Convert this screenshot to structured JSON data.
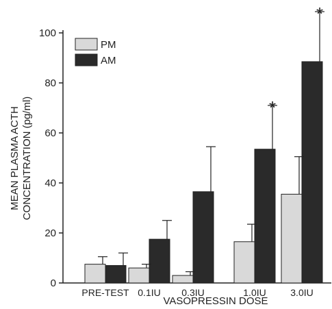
{
  "chart_data": {
    "type": "bar",
    "title": "",
    "xlabel": "VASOPRESSIN DOSE",
    "ylabel_lines": [
      "MEAN PLASMA ACTH",
      "CONCENTRATION (pg/ml)"
    ],
    "ylim": [
      0,
      100
    ],
    "yticks": [
      0,
      20,
      40,
      60,
      80,
      100
    ],
    "grid": false,
    "legend_position": "top-left",
    "categories": [
      "PRE-TEST",
      "0.1IU",
      "0.3IU",
      "1.0IU",
      "3.0IU"
    ],
    "series": [
      {
        "name": "PM",
        "fill": "#d9d9d9",
        "values": [
          7.5,
          6,
          3,
          16.5,
          35.5
        ],
        "error": [
          3,
          1.5,
          1.5,
          7,
          15
        ]
      },
      {
        "name": "AM",
        "fill": "#2a2a2a",
        "values": [
          7,
          17.5,
          36.5,
          53.5,
          88.5
        ],
        "error": [
          5,
          7.5,
          18,
          17.5,
          20
        ]
      }
    ],
    "annotations": [
      {
        "category": "1.0IU",
        "series": "AM",
        "text": "*"
      },
      {
        "category": "3.0IU",
        "series": "AM",
        "text": "*"
      }
    ]
  }
}
